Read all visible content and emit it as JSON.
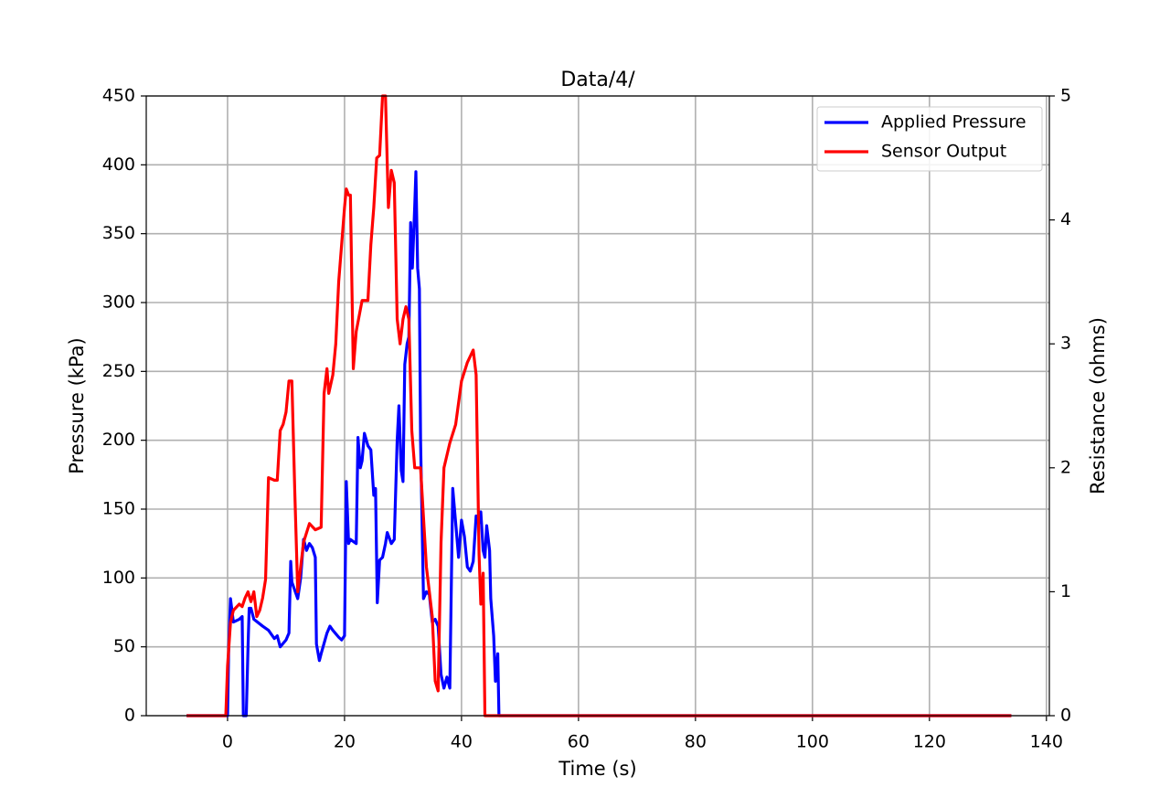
{
  "chart_data": {
    "type": "line",
    "title": "Data/4/",
    "x_label": "Time (s)",
    "y_label": "Pressure (kPa)",
    "y2_label": "Resistance (ohms)",
    "xlim": [
      -13.9,
      140.5
    ],
    "xticks": [
      0,
      20,
      40,
      60,
      80,
      100,
      120,
      140
    ],
    "ylim": [
      0,
      450
    ],
    "yticks": [
      0,
      50,
      100,
      150,
      200,
      250,
      300,
      350,
      400,
      450
    ],
    "y2lim": [
      0,
      5
    ],
    "y2ticks": [
      0,
      1,
      2,
      3,
      4,
      5
    ],
    "grid": true,
    "legend": "upper right",
    "series": [
      {
        "name": "Applied Pressure",
        "color": "#0000ff",
        "x": [
          -7,
          0,
          0.2,
          0.5,
          1,
          2,
          2.5,
          2.7,
          3.2,
          3.5,
          3.7,
          4,
          4.5,
          6,
          7,
          8,
          8.5,
          9,
          10,
          10.5,
          10.8,
          11,
          12,
          12.5,
          13,
          13.5,
          14,
          14.5,
          15,
          15.2,
          15.7,
          16,
          17,
          17.5,
          18,
          19,
          19.5,
          20,
          20.3,
          20.7,
          21,
          22,
          22.3,
          22.7,
          23,
          23.4,
          24,
          24.5,
          25,
          25.3,
          25.6,
          26,
          26.5,
          27,
          27.3,
          28,
          28.5,
          29,
          29.3,
          29.7,
          30,
          30.3,
          30.7,
          31,
          31.3,
          31.6,
          32,
          32.2,
          32.5,
          32.8,
          33,
          33.5,
          34,
          34.5,
          35,
          35.5,
          36,
          36.5,
          37,
          37.5,
          38,
          38.5,
          39,
          39.5,
          40,
          40.5,
          41,
          41.5,
          42,
          42.5,
          43,
          43.3,
          43.7,
          44,
          44.3,
          44.8,
          45,
          45.5,
          45.8,
          46,
          46.2,
          46.4,
          134
        ],
        "values": [
          0,
          0,
          50,
          85,
          68,
          70,
          72,
          0,
          0,
          50,
          78,
          78,
          70,
          65,
          62,
          56,
          58,
          50,
          55,
          60,
          112,
          97,
          85,
          100,
          128,
          120,
          125,
          122,
          115,
          52,
          40,
          45,
          60,
          65,
          62,
          57,
          55,
          58,
          170,
          125,
          128,
          125,
          202,
          180,
          185,
          205,
          196,
          193,
          160,
          165,
          82,
          113,
          115,
          125,
          133,
          125,
          128,
          200,
          225,
          178,
          170,
          255,
          270,
          275,
          358,
          325,
          370,
          395,
          325,
          310,
          200,
          85,
          90,
          88,
          68,
          70,
          65,
          30,
          20,
          28,
          20,
          165,
          140,
          115,
          142,
          130,
          108,
          105,
          112,
          145,
          140,
          148,
          120,
          115,
          138,
          120,
          85,
          58,
          25,
          35,
          45,
          0,
          0
        ]
      },
      {
        "name": "Sensor Output",
        "color": "#ff0000",
        "axis": "y2",
        "x": [
          -7,
          -0.3,
          0,
          0.5,
          1,
          2,
          2.5,
          3,
          3.5,
          4,
          4.5,
          5,
          5.5,
          6,
          6.5,
          7,
          8,
          8.5,
          9,
          9.5,
          10,
          10.5,
          11,
          11.5,
          12,
          12.5,
          13,
          14,
          15,
          16,
          16.5,
          17,
          17.3,
          18,
          18.5,
          19,
          19.5,
          20,
          20.3,
          20.7,
          21,
          21.5,
          22,
          23,
          24,
          24.5,
          25,
          25.5,
          26,
          26.5,
          27,
          27.5,
          28,
          28.5,
          29,
          29.5,
          30,
          30.5,
          31,
          31.5,
          32,
          33,
          33.5,
          34,
          35,
          35.5,
          36,
          36.5,
          37,
          38,
          39,
          40,
          41,
          42,
          42.5,
          43,
          43.3,
          43.7,
          44,
          134
        ],
        "values": [
          0,
          0,
          0.4,
          0.75,
          0.85,
          0.9,
          0.88,
          0.95,
          1.0,
          0.92,
          1.0,
          0.8,
          0.85,
          0.95,
          1.1,
          1.92,
          1.9,
          1.9,
          2.3,
          2.35,
          2.45,
          2.7,
          2.7,
          1.8,
          1.0,
          1.2,
          1.4,
          1.55,
          1.5,
          1.52,
          2.6,
          2.8,
          2.6,
          2.75,
          3.0,
          3.5,
          3.8,
          4.1,
          4.25,
          4.2,
          4.2,
          2.8,
          3.1,
          3.35,
          3.35,
          3.8,
          4.1,
          4.5,
          4.52,
          5.0,
          5.0,
          4.1,
          4.4,
          4.3,
          3.2,
          3.0,
          3.2,
          3.3,
          3.2,
          2.3,
          2.0,
          2.0,
          1.6,
          1.2,
          0.8,
          0.28,
          0.2,
          1.4,
          2.0,
          2.2,
          2.35,
          2.7,
          2.85,
          2.95,
          2.75,
          1.3,
          0.9,
          1.15,
          0,
          0
        ]
      }
    ]
  }
}
